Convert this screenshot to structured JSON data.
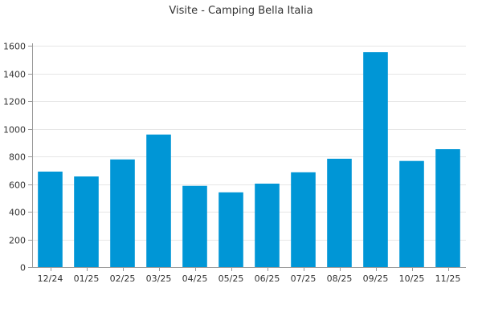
{
  "chart_data": {
    "type": "bar",
    "title": "Visite - Camping Bella Italia",
    "xlabel": "",
    "ylabel": "",
    "categories": [
      "12/24",
      "01/25",
      "02/25",
      "03/25",
      "04/25",
      "05/25",
      "06/25",
      "07/25",
      "08/25",
      "09/25",
      "10/25",
      "11/25"
    ],
    "values": [
      690,
      655,
      778,
      958,
      587,
      540,
      603,
      685,
      783,
      1553,
      767,
      852
    ],
    "ylim": [
      0,
      1600
    ],
    "yticks": [
      0,
      200,
      400,
      600,
      800,
      1000,
      1200,
      1400,
      1600
    ],
    "ytick_labels": [
      "0",
      "200",
      "400",
      "600",
      "800",
      "1000",
      "1200",
      "1400",
      "1600"
    ],
    "bar_color": "#0096d6",
    "grid": true,
    "legend": "none"
  }
}
